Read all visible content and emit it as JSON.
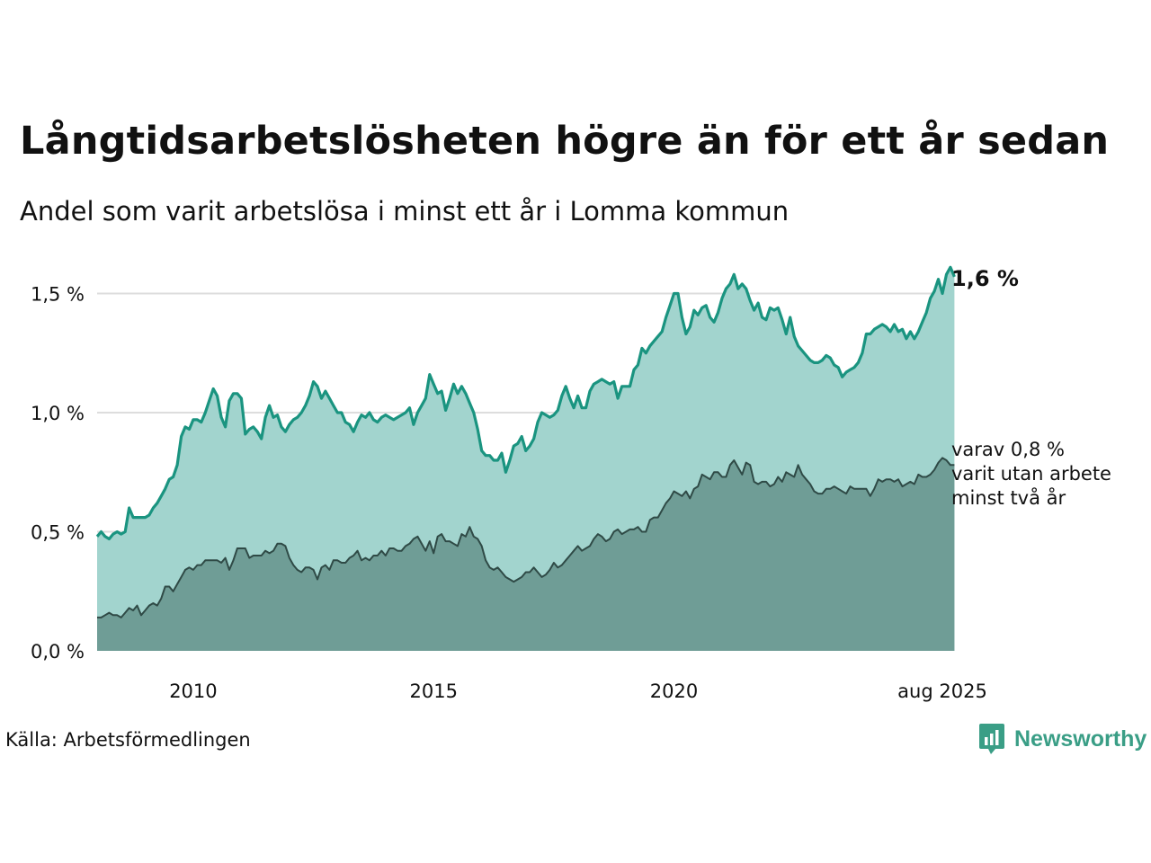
{
  "header": {
    "title": "Långtidsarbetslösheten högre än för ett år sedan",
    "subtitle": "Andel som varit arbetslösa i minst ett år i Lomma kommun"
  },
  "footer": {
    "source": "Källa: Arbetsförmedlingen",
    "brand": "Newsworthy"
  },
  "annotations": {
    "total_label": "1,6 %",
    "long_line1": "varav 0,8 %",
    "long_line2": "varit utan arbete",
    "long_line3": "minst två år"
  },
  "colors": {
    "total_line": "#1a9480",
    "total_fill": "#a2d4ce",
    "long_line": "#2f4a46",
    "long_fill": "#6f9d96",
    "grid": "#dddddd",
    "brand": "#3a9e86"
  },
  "icons": {
    "brand_logo": "bar-chart-speech-icon"
  },
  "chart_data": {
    "type": "area",
    "x_start": "2008-01",
    "x_frequency": "monthly",
    "x_end": "2025-08",
    "xticks": [
      "2010",
      "2015",
      "2020",
      "aug 2025"
    ],
    "xtick_dates": [
      "2010-01",
      "2015-01",
      "2020-01",
      "2025-08"
    ],
    "yticks": [
      "0,0 %",
      "0,5 %",
      "1,0 %",
      "1,5 %"
    ],
    "ytick_values": [
      0,
      0.5,
      1.0,
      1.5
    ],
    "ylim": [
      0,
      1.6
    ],
    "grid": true,
    "series": [
      {
        "key": "total",
        "values": [
          0.48,
          0.5,
          0.48,
          0.47,
          0.49,
          0.5,
          0.49,
          0.5,
          0.6,
          0.56,
          0.56,
          0.56,
          0.56,
          0.57,
          0.6,
          0.62,
          0.65,
          0.68,
          0.72,
          0.73,
          0.78,
          0.9,
          0.94,
          0.93,
          0.97,
          0.97,
          0.96,
          1.0,
          1.05,
          1.1,
          1.07,
          0.98,
          0.94,
          1.05,
          1.08,
          1.08,
          1.06,
          0.91,
          0.93,
          0.94,
          0.92,
          0.89,
          0.98,
          1.03,
          0.98,
          0.99,
          0.94,
          0.92,
          0.95,
          0.97,
          0.98,
          1.0,
          1.03,
          1.07,
          1.13,
          1.11,
          1.06,
          1.09,
          1.06,
          1.03,
          1.0,
          1.0,
          0.96,
          0.95,
          0.92,
          0.96,
          0.99,
          0.98,
          1.0,
          0.97,
          0.96,
          0.98,
          0.99,
          0.98,
          0.97,
          0.98,
          0.99,
          1.0,
          1.02,
          0.95,
          1.0,
          1.03,
          1.06,
          1.16,
          1.12,
          1.08,
          1.09,
          1.01,
          1.06,
          1.12,
          1.08,
          1.11,
          1.08,
          1.04,
          1.0,
          0.93,
          0.84,
          0.82,
          0.82,
          0.8,
          0.8,
          0.83,
          0.75,
          0.8,
          0.86,
          0.87,
          0.9,
          0.84,
          0.86,
          0.89,
          0.96,
          1.0,
          0.99,
          0.98,
          0.99,
          1.01,
          1.07,
          1.11,
          1.06,
          1.02,
          1.07,
          1.02,
          1.02,
          1.09,
          1.12,
          1.13,
          1.14,
          1.13,
          1.12,
          1.13,
          1.06,
          1.11,
          1.11,
          1.11,
          1.18,
          1.2,
          1.27,
          1.25,
          1.28,
          1.3,
          1.32,
          1.34,
          1.4,
          1.45,
          1.5,
          1.5,
          1.4,
          1.33,
          1.36,
          1.43,
          1.41,
          1.44,
          1.45,
          1.4,
          1.38,
          1.42,
          1.48,
          1.52,
          1.54,
          1.58,
          1.52,
          1.54,
          1.52,
          1.47,
          1.43,
          1.46,
          1.4,
          1.39,
          1.44,
          1.43,
          1.44,
          1.39,
          1.33,
          1.4,
          1.32,
          1.28,
          1.26,
          1.24,
          1.22,
          1.21,
          1.21,
          1.22,
          1.24,
          1.23,
          1.2,
          1.19,
          1.15,
          1.17,
          1.18,
          1.19,
          1.21,
          1.25,
          1.33,
          1.33,
          1.35,
          1.36,
          1.37,
          1.36,
          1.34,
          1.37,
          1.34,
          1.35,
          1.31,
          1.34,
          1.31,
          1.34,
          1.38,
          1.42,
          1.48,
          1.51,
          1.56,
          1.5,
          1.58,
          1.61,
          1.57
        ]
      },
      {
        "key": "long",
        "values": [
          0.14,
          0.14,
          0.15,
          0.16,
          0.15,
          0.15,
          0.14,
          0.16,
          0.18,
          0.17,
          0.19,
          0.15,
          0.17,
          0.19,
          0.2,
          0.19,
          0.22,
          0.27,
          0.27,
          0.25,
          0.28,
          0.31,
          0.34,
          0.35,
          0.34,
          0.36,
          0.36,
          0.38,
          0.38,
          0.38,
          0.38,
          0.37,
          0.39,
          0.34,
          0.38,
          0.43,
          0.43,
          0.43,
          0.39,
          0.4,
          0.4,
          0.4,
          0.42,
          0.41,
          0.42,
          0.45,
          0.45,
          0.44,
          0.39,
          0.36,
          0.34,
          0.33,
          0.35,
          0.35,
          0.34,
          0.3,
          0.35,
          0.36,
          0.34,
          0.38,
          0.38,
          0.37,
          0.37,
          0.39,
          0.4,
          0.42,
          0.38,
          0.39,
          0.38,
          0.4,
          0.4,
          0.42,
          0.4,
          0.43,
          0.43,
          0.42,
          0.42,
          0.44,
          0.45,
          0.47,
          0.48,
          0.45,
          0.42,
          0.46,
          0.41,
          0.48,
          0.49,
          0.46,
          0.46,
          0.45,
          0.44,
          0.49,
          0.48,
          0.52,
          0.48,
          0.47,
          0.44,
          0.38,
          0.35,
          0.34,
          0.35,
          0.33,
          0.31,
          0.3,
          0.29,
          0.3,
          0.31,
          0.33,
          0.33,
          0.35,
          0.33,
          0.31,
          0.32,
          0.34,
          0.37,
          0.35,
          0.36,
          0.38,
          0.4,
          0.42,
          0.44,
          0.42,
          0.43,
          0.44,
          0.47,
          0.49,
          0.48,
          0.46,
          0.47,
          0.5,
          0.51,
          0.49,
          0.5,
          0.51,
          0.51,
          0.52,
          0.5,
          0.5,
          0.55,
          0.56,
          0.56,
          0.59,
          0.62,
          0.64,
          0.67,
          0.66,
          0.65,
          0.67,
          0.64,
          0.68,
          0.69,
          0.74,
          0.73,
          0.72,
          0.75,
          0.75,
          0.73,
          0.73,
          0.78,
          0.8,
          0.77,
          0.74,
          0.79,
          0.78,
          0.71,
          0.7,
          0.71,
          0.71,
          0.69,
          0.7,
          0.73,
          0.71,
          0.75,
          0.74,
          0.73,
          0.78,
          0.74,
          0.72,
          0.7,
          0.67,
          0.66,
          0.66,
          0.68,
          0.68,
          0.69,
          0.68,
          0.67,
          0.66,
          0.69,
          0.68,
          0.68,
          0.68,
          0.68,
          0.65,
          0.68,
          0.72,
          0.71,
          0.72,
          0.72,
          0.71,
          0.72,
          0.69,
          0.7,
          0.71,
          0.7,
          0.74,
          0.73,
          0.73,
          0.74,
          0.76,
          0.79,
          0.81,
          0.8,
          0.78,
          0.78
        ]
      }
    ]
  }
}
